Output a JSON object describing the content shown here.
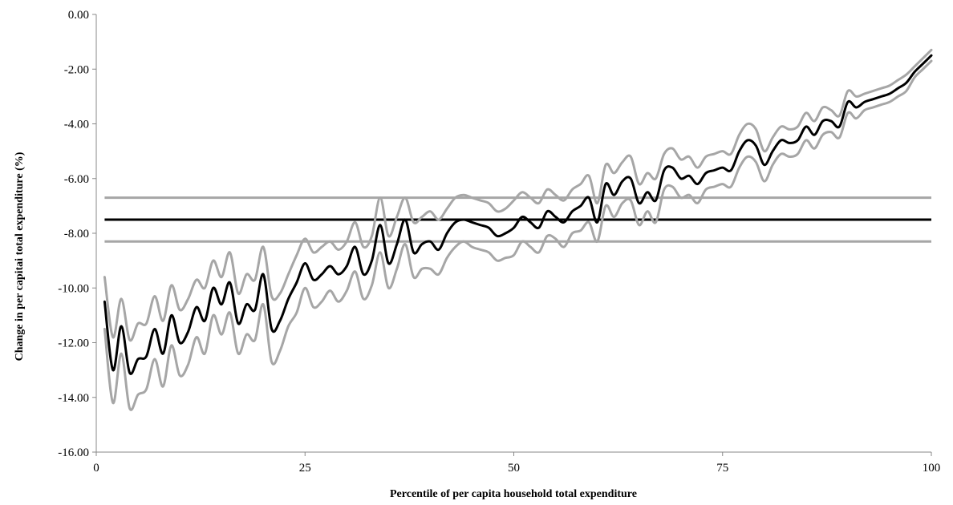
{
  "chart_data": {
    "type": "line",
    "title": "",
    "xlabel": "Percentile of per capita household total expenditure",
    "ylabel": "Change in per capitai total expenditure (%)",
    "xlim": [
      0,
      100
    ],
    "ylim": [
      -16,
      0
    ],
    "x_ticks": [
      0,
      25,
      50,
      75,
      100
    ],
    "y_ticks": [
      0,
      -2,
      -4,
      -6,
      -8,
      -10,
      -12,
      -14,
      -16
    ],
    "y_tick_labels": [
      "0.00",
      "-2.00",
      "-4.00",
      "-6.00",
      "-8.00",
      "-10.00",
      "-12.00",
      "-14.00",
      "-16.00"
    ],
    "grid": false,
    "legend": "none",
    "colors": {
      "estimate": "#000000",
      "confidence": "#a6a6a6"
    },
    "x": [
      1,
      2,
      3,
      4,
      5,
      6,
      7,
      8,
      9,
      10,
      11,
      12,
      13,
      14,
      15,
      16,
      17,
      18,
      19,
      20,
      21,
      22,
      23,
      24,
      25,
      26,
      27,
      28,
      29,
      30,
      31,
      32,
      33,
      34,
      35,
      36,
      37,
      38,
      39,
      40,
      41,
      42,
      43,
      44,
      45,
      46,
      47,
      48,
      49,
      50,
      51,
      52,
      53,
      54,
      55,
      56,
      57,
      58,
      59,
      60,
      61,
      62,
      63,
      64,
      65,
      66,
      67,
      68,
      69,
      70,
      71,
      72,
      73,
      74,
      75,
      76,
      77,
      78,
      79,
      80,
      81,
      82,
      83,
      84,
      85,
      86,
      87,
      88,
      89,
      90,
      91,
      92,
      93,
      94,
      95,
      96,
      97,
      98,
      99,
      100
    ],
    "series": [
      {
        "role": "estimate",
        "values": [
          -10.5,
          -13.0,
          -11.4,
          -13.1,
          -12.6,
          -12.5,
          -11.5,
          -12.4,
          -11.0,
          -12.0,
          -11.6,
          -10.7,
          -11.2,
          -10.0,
          -10.6,
          -9.8,
          -11.3,
          -10.6,
          -10.8,
          -9.5,
          -11.5,
          -11.2,
          -10.4,
          -9.8,
          -9.1,
          -9.7,
          -9.5,
          -9.2,
          -9.5,
          -9.2,
          -8.5,
          -9.5,
          -9.0,
          -7.7,
          -9.1,
          -8.4,
          -7.5,
          -8.7,
          -8.4,
          -8.3,
          -8.6,
          -8.0,
          -7.6,
          -7.5,
          -7.6,
          -7.7,
          -7.8,
          -8.1,
          -8.0,
          -7.8,
          -7.4,
          -7.6,
          -7.8,
          -7.2,
          -7.4,
          -7.6,
          -7.2,
          -7.0,
          -6.7,
          -7.6,
          -6.2,
          -6.6,
          -6.1,
          -6.0,
          -6.9,
          -6.5,
          -6.8,
          -5.7,
          -5.6,
          -6.0,
          -5.9,
          -6.2,
          -5.8,
          -5.7,
          -5.6,
          -5.7,
          -5.0,
          -4.6,
          -4.8,
          -5.5,
          -5.0,
          -4.6,
          -4.7,
          -4.6,
          -4.1,
          -4.4,
          -3.9,
          -3.9,
          -4.1,
          -3.2,
          -3.4,
          -3.2,
          -3.1,
          -3.0,
          -2.9,
          -2.7,
          -2.5,
          -2.1,
          -1.8,
          -1.5
        ]
      },
      {
        "role": "upper-bound",
        "values": [
          -9.6,
          -11.8,
          -10.4,
          -11.9,
          -11.3,
          -11.3,
          -10.3,
          -11.2,
          -9.9,
          -10.8,
          -10.4,
          -9.7,
          -10.0,
          -9.0,
          -9.6,
          -8.7,
          -10.2,
          -9.5,
          -9.7,
          -8.5,
          -10.3,
          -10.2,
          -9.5,
          -8.8,
          -8.2,
          -8.7,
          -8.5,
          -8.3,
          -8.6,
          -8.3,
          -7.6,
          -8.5,
          -8.1,
          -6.7,
          -8.1,
          -7.4,
          -6.7,
          -7.6,
          -7.4,
          -7.2,
          -7.5,
          -7.1,
          -6.7,
          -6.6,
          -6.7,
          -6.8,
          -6.9,
          -7.2,
          -7.1,
          -6.8,
          -6.5,
          -6.7,
          -6.9,
          -6.4,
          -6.6,
          -6.8,
          -6.4,
          -6.2,
          -5.9,
          -6.9,
          -5.5,
          -5.8,
          -5.4,
          -5.2,
          -6.2,
          -5.8,
          -6.0,
          -5.1,
          -4.9,
          -5.3,
          -5.2,
          -5.6,
          -5.2,
          -5.1,
          -5.0,
          -5.1,
          -4.4,
          -4.0,
          -4.2,
          -5.0,
          -4.5,
          -4.1,
          -4.2,
          -4.1,
          -3.6,
          -3.9,
          -3.4,
          -3.5,
          -3.7,
          -2.8,
          -3.0,
          -2.9,
          -2.8,
          -2.7,
          -2.6,
          -2.4,
          -2.2,
          -1.9,
          -1.6,
          -1.3
        ]
      },
      {
        "role": "lower-bound",
        "values": [
          -11.5,
          -14.2,
          -12.4,
          -14.4,
          -13.9,
          -13.7,
          -12.6,
          -13.6,
          -12.1,
          -13.2,
          -12.8,
          -11.8,
          -12.4,
          -11.0,
          -11.7,
          -10.9,
          -12.4,
          -11.7,
          -11.9,
          -10.6,
          -12.7,
          -12.3,
          -11.4,
          -10.9,
          -10.0,
          -10.7,
          -10.5,
          -10.1,
          -10.5,
          -10.1,
          -9.4,
          -10.4,
          -9.9,
          -8.7,
          -10.0,
          -9.3,
          -8.4,
          -9.6,
          -9.3,
          -9.3,
          -9.5,
          -8.9,
          -8.5,
          -8.3,
          -8.5,
          -8.6,
          -8.7,
          -9.0,
          -8.9,
          -8.8,
          -8.3,
          -8.5,
          -8.7,
          -8.1,
          -8.2,
          -8.5,
          -8.0,
          -7.9,
          -7.6,
          -8.3,
          -7.0,
          -7.4,
          -6.9,
          -6.8,
          -7.7,
          -7.2,
          -7.6,
          -6.4,
          -6.3,
          -6.7,
          -6.6,
          -6.9,
          -6.4,
          -6.3,
          -6.2,
          -6.3,
          -5.6,
          -5.2,
          -5.4,
          -6.1,
          -5.5,
          -5.1,
          -5.2,
          -5.1,
          -4.6,
          -4.9,
          -4.4,
          -4.3,
          -4.5,
          -3.6,
          -3.8,
          -3.5,
          -3.4,
          -3.3,
          -3.2,
          -3.0,
          -2.8,
          -2.3,
          -2.0,
          -1.7
        ]
      }
    ],
    "reference_lines": [
      {
        "role": "mean",
        "y": -7.5
      },
      {
        "role": "mean-upper-bound",
        "y": -6.7
      },
      {
        "role": "mean-lower-bound",
        "y": -8.3
      }
    ]
  }
}
